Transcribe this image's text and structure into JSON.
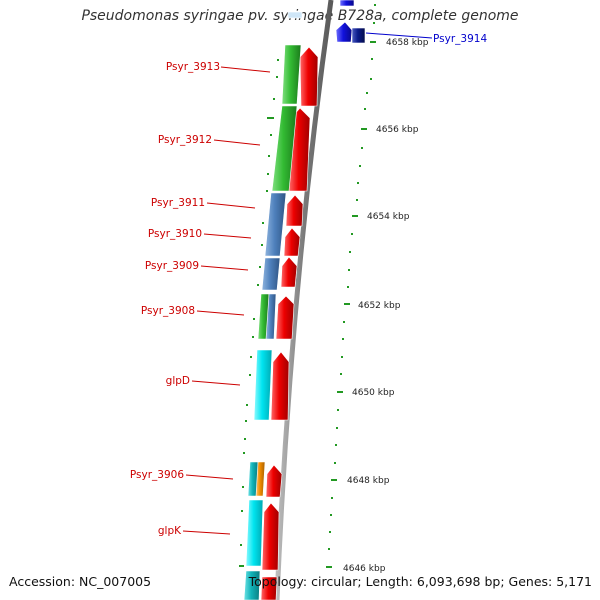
{
  "title": "Pseudomonas syringae pv. syringae B728a, complete genome",
  "footer": {
    "accession": "Accession: NC_007005",
    "topology": "Topology: circular; Length: 6,093,698 bp; Genes: 5,171"
  },
  "colors": {
    "gene_red": "#ee0000",
    "gene_green": "#33bb33",
    "gene_steelblue": "#4f81bd",
    "gene_cyan": "#00e5f0",
    "gene_orange": "#f08c00",
    "gene_blue": "#1111dd",
    "gene_navy": "#0a1a8a",
    "backbone": "#8c8c8c",
    "tick_green": "#229922",
    "label_red": "#cc0000",
    "label_blue": "#0000cc"
  },
  "scale_ticks": [
    "4658 kbp",
    "4656 kbp",
    "4654 kbp",
    "4652 kbp",
    "4650 kbp",
    "4648 kbp",
    "4646 kbp"
  ],
  "gene_labels": [
    {
      "text": "Psyr_3914",
      "color": "blue"
    },
    {
      "text": "Psyr_3913",
      "color": "red"
    },
    {
      "text": "Psyr_3912",
      "color": "red"
    },
    {
      "text": "Psyr_3911",
      "color": "red"
    },
    {
      "text": "Psyr_3910",
      "color": "red"
    },
    {
      "text": "Psyr_3909",
      "color": "red"
    },
    {
      "text": "Psyr_3908",
      "color": "red"
    },
    {
      "text": "glpD",
      "color": "red"
    },
    {
      "text": "Psyr_3906",
      "color": "red"
    },
    {
      "text": "glpK",
      "color": "red"
    }
  ]
}
